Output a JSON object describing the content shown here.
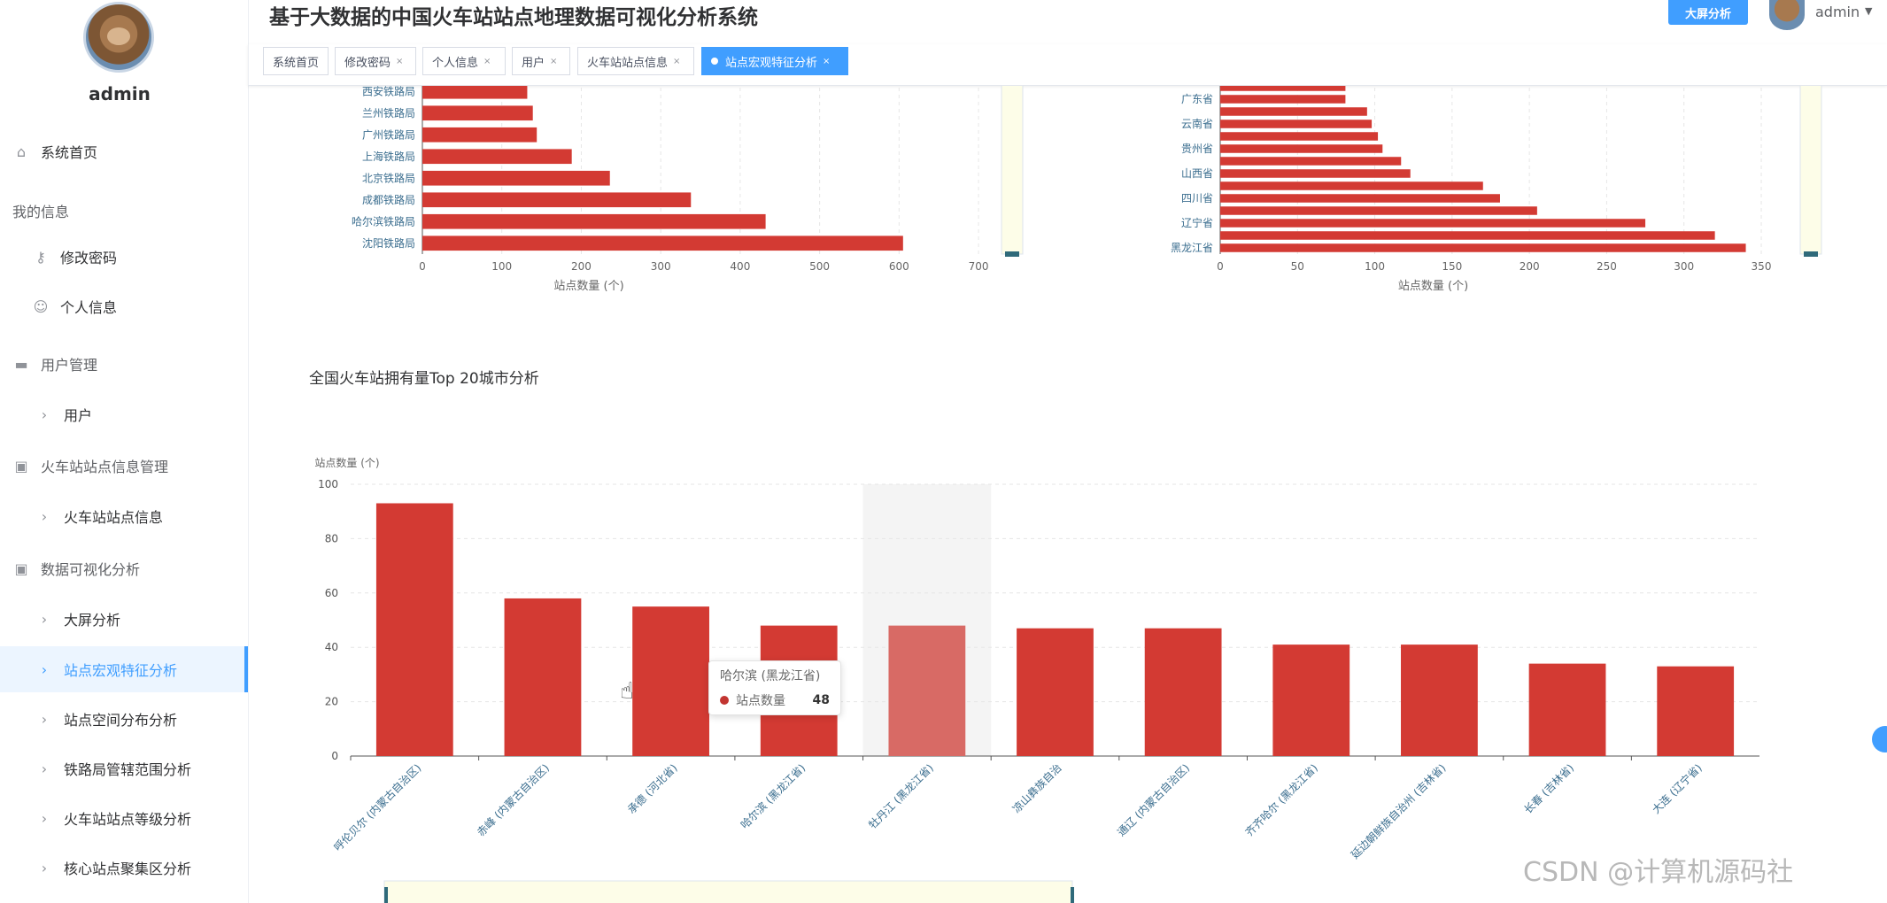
{
  "app": {
    "title": "基于大数据的中国火车站站点地理数据可视化分析系统",
    "big_screen_button": "大屏分析",
    "user": "admin"
  },
  "sidebar": {
    "user": "admin",
    "items": [
      {
        "label": "系统首页",
        "icon": "home-icon",
        "group": false
      },
      {
        "label": "我的信息",
        "icon": "",
        "group": true
      },
      {
        "label": "修改密码",
        "icon": "key-icon",
        "group": false
      },
      {
        "label": "个人信息",
        "icon": "user-icon",
        "group": false
      },
      {
        "label": "用户管理",
        "icon": "briefcase-icon",
        "group": true
      },
      {
        "label": "用户",
        "icon": "chevron-right-icon",
        "group": false
      },
      {
        "label": "火车站站点信息管理",
        "icon": "clipboard-icon",
        "group": true
      },
      {
        "label": "火车站站点信息",
        "icon": "chevron-right-icon",
        "group": false
      },
      {
        "label": "数据可视化分析",
        "icon": "clipboard-x-icon",
        "group": true
      },
      {
        "label": "大屏分析",
        "icon": "chevron-right-icon",
        "group": false
      },
      {
        "label": "站点宏观特征分析",
        "icon": "chevron-right-icon",
        "group": false,
        "active": true
      },
      {
        "label": "站点空间分布分析",
        "icon": "chevron-right-icon",
        "group": false
      },
      {
        "label": "铁路局管辖范围分析",
        "icon": "chevron-right-icon",
        "group": false
      },
      {
        "label": "火车站站点等级分析",
        "icon": "chevron-right-icon",
        "group": false
      },
      {
        "label": "核心站点聚集区分析",
        "icon": "chevron-right-icon",
        "group": false
      }
    ]
  },
  "tabs": [
    {
      "label": "系统首页",
      "closable": false
    },
    {
      "label": "修改密码",
      "closable": true
    },
    {
      "label": "个人信息",
      "closable": true
    },
    {
      "label": "用户",
      "closable": true
    },
    {
      "label": "火车站站点信息",
      "closable": true
    },
    {
      "label": "站点宏观特征分析",
      "closable": true,
      "active": true
    }
  ],
  "section_title": "全国火车站拥有量Top 20城市分析",
  "tooltip": {
    "title": "哈尔滨 (黑龙江省)",
    "series": "站点数量",
    "value": "48"
  },
  "watermark": "CSDN @计算机源码社",
  "colors": {
    "bar": "#d33a33",
    "bar_highlight": "#d86a65",
    "accent": "#409eff"
  },
  "chart_data": [
    {
      "type": "bar",
      "orientation": "horizontal",
      "categories": [
        "沈阳铁路局",
        "哈尔滨铁路局",
        "成都铁路局",
        "北京铁路局",
        "上海铁路局",
        "广州铁路局",
        "兰州铁路局",
        "西安铁路局"
      ],
      "values": [
        605,
        432,
        338,
        236,
        188,
        144,
        139,
        132
      ],
      "xlabel": "站点数量 (个)",
      "xticks": [
        0,
        100,
        200,
        300,
        400,
        500,
        600,
        700
      ],
      "xlim": [
        0,
        720
      ]
    },
    {
      "type": "bar",
      "orientation": "horizontal",
      "categories": [
        "黑龙江省",
        "",
        "辽宁省",
        "",
        "四川省",
        "",
        "山西省",
        "",
        "贵州省",
        "",
        "云南省",
        "",
        "广东省",
        ""
      ],
      "values": [
        340,
        320,
        275,
        205,
        181,
        170,
        123,
        117,
        105,
        102,
        98,
        95,
        81,
        81
      ],
      "xlabel": "站点数量 (个)",
      "xticks": [
        0,
        50,
        100,
        150,
        200,
        250,
        300,
        350
      ],
      "xlim": [
        0,
        350
      ]
    },
    {
      "type": "bar",
      "title": "全国火车站拥有量Top 20城市分析",
      "ylabel": "站点数量 (个)",
      "categories": [
        "呼伦贝尔 (内蒙古自治区)",
        "赤峰 (内蒙古自治区)",
        "承德 (河北省)",
        "哈尔滨 (黑龙江省)",
        "牡丹江 (黑龙江省)",
        "凉山彝族自治",
        "通辽 (内蒙古自治区)",
        "齐齐哈尔 (黑龙江省)",
        "延边朝鲜族自治州 (吉林省)",
        "长春 (吉林省)",
        "大连 (辽宁省)"
      ],
      "values": [
        93,
        58,
        55,
        48,
        48,
        47,
        47,
        41,
        41,
        34,
        33
      ],
      "yticks": [
        0,
        20,
        40,
        60,
        80,
        100
      ],
      "ylim": [
        0,
        100
      ],
      "highlight_index": 4
    }
  ]
}
